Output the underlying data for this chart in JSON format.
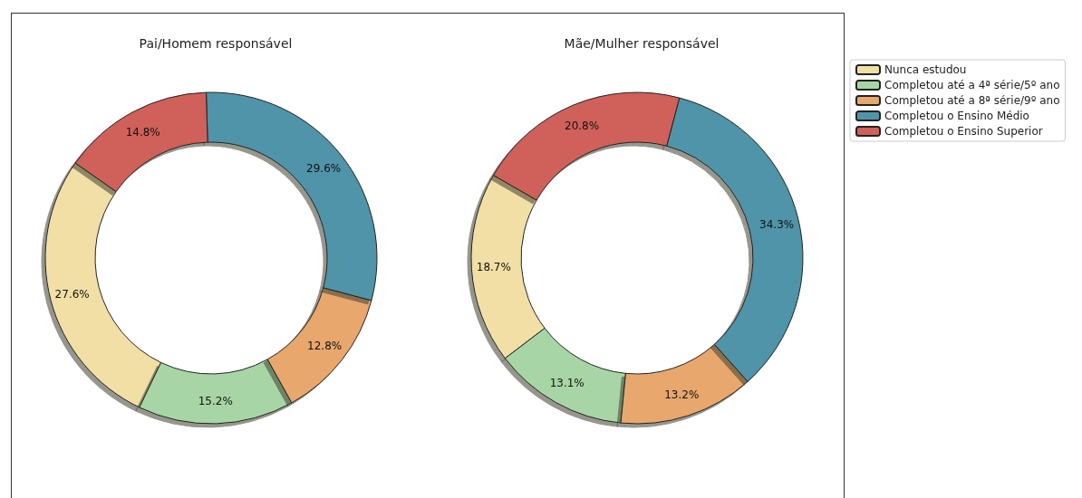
{
  "chart_data": {
    "type": "donut",
    "categories": [
      "Nunca estudou",
      "Completou até a 4ª série/5º ano",
      "Completou até a 8ª série/9º ano",
      "Completou o Ensino Médio",
      "Completou o Ensino Superior"
    ],
    "colors": [
      "#f1dfa6",
      "#a8d5a5",
      "#e8a76c",
      "#4f94a8",
      "#d0605a"
    ],
    "legend": "right",
    "series": [
      {
        "name": "Pai/Homem responsável",
        "values": [
          27.6,
          15.2,
          12.8,
          29.6,
          14.8
        ],
        "value_labels": [
          "27.6%",
          "15.2%",
          "12.8%",
          "29.6%",
          "14.8%"
        ]
      },
      {
        "name": "Mãe/Mulher responsável",
        "values": [
          18.7,
          13.1,
          13.2,
          34.3,
          20.8
        ],
        "value_labels": [
          "18.7%",
          "13.1%",
          "13.2%",
          "34.3%",
          "20.8%"
        ]
      }
    ]
  }
}
